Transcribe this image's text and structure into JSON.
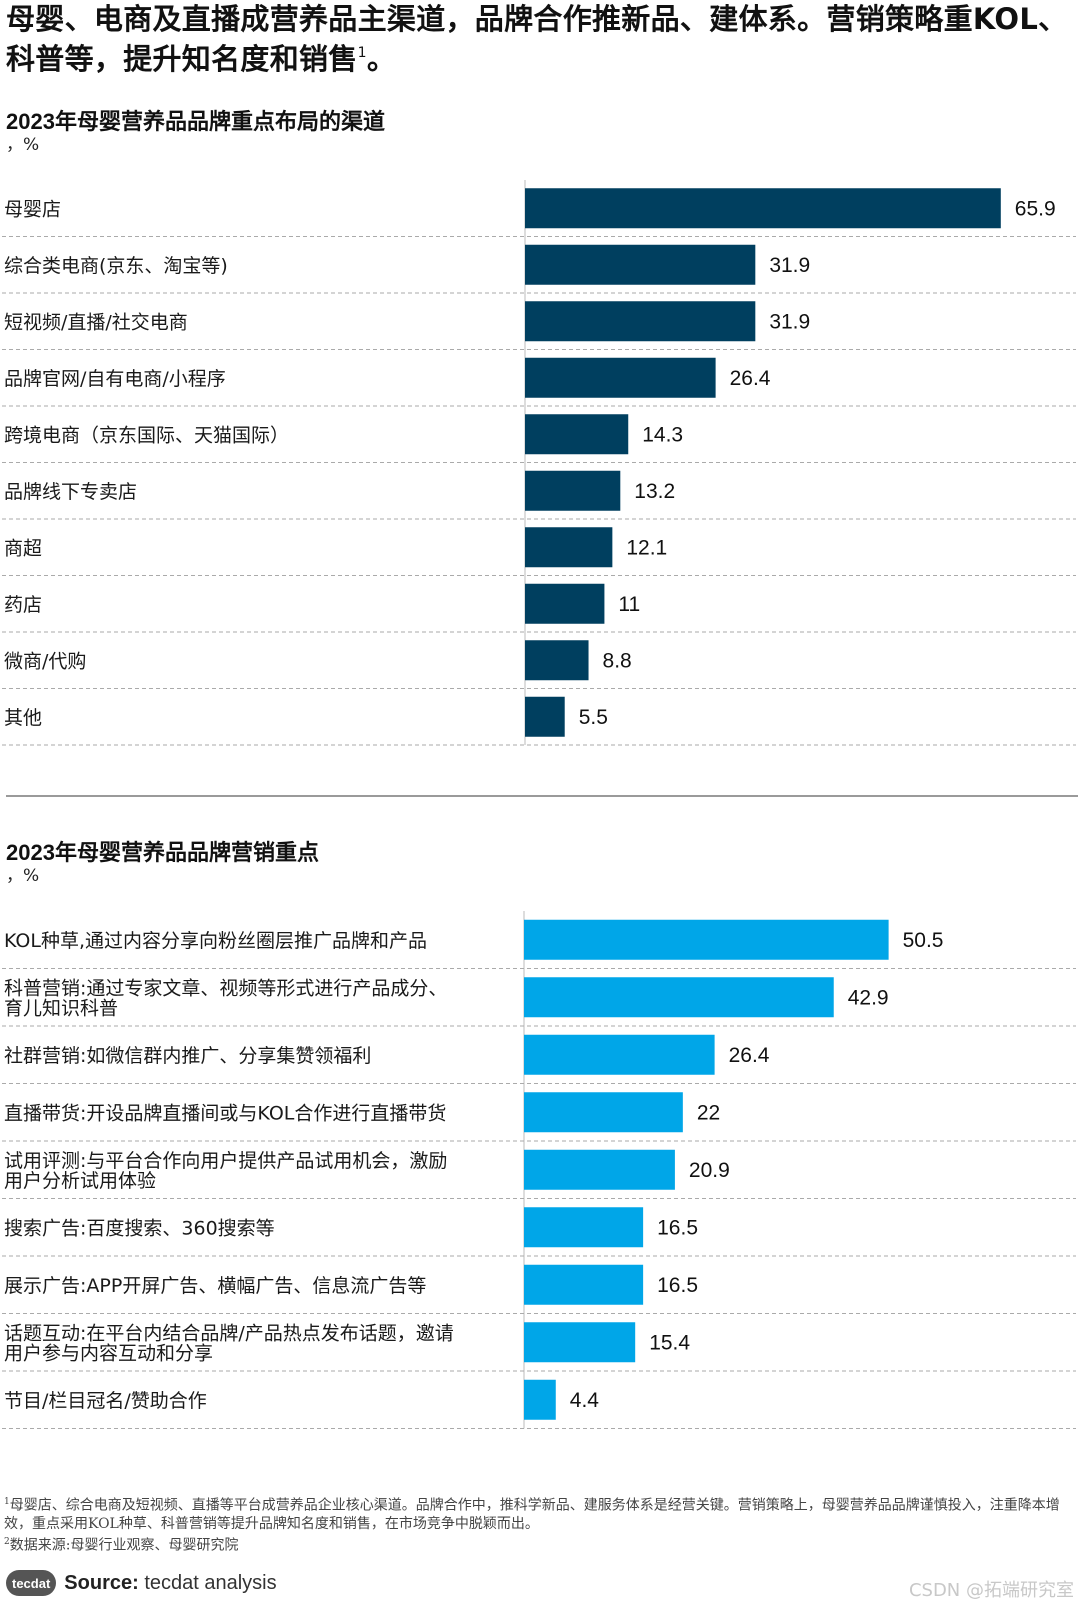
{
  "headline": {
    "text": "母婴、电商及直播成营养品主渠道，品牌合作推新品、建体系。营销策略重KOL、科普等，提升知名度和销售",
    "sup": "1",
    "end": "。"
  },
  "chart1": {
    "title": "2023年母婴营养品品牌重点布局的渠道",
    "unit": "，%"
  },
  "chart2": {
    "title": "2023年母婴营养品品牌营销重点",
    "unit": "，%"
  },
  "chart_data": [
    {
      "type": "bar",
      "orientation": "horizontal",
      "title": "2023年母婴营养品品牌重点布局的渠道",
      "ylabel": "%",
      "color": "#003f5f",
      "categories": [
        "母婴店",
        "综合类电商(京东、淘宝等)",
        "短视频/直播/社交电商",
        "品牌官网/自有电商/小程序",
        "跨境电商（京东国际、天猫国际）",
        "品牌线下专卖店",
        "商超",
        "药店",
        "微商/代购",
        "其他"
      ],
      "values": [
        65.9,
        31.9,
        31.9,
        26.4,
        14.3,
        13.2,
        12.1,
        11,
        8.8,
        5.5
      ],
      "value_labels": [
        "65.9",
        "31.9",
        "31.9",
        "26.4",
        "14.3",
        "13.2",
        "12.1",
        "11",
        "8.8",
        "5.5"
      ]
    },
    {
      "type": "bar",
      "orientation": "horizontal",
      "title": "2023年母婴营养品品牌营销重点",
      "ylabel": "%",
      "color": "#00a6e8",
      "categories": [
        [
          "KOL种草,通过内容分享向粉丝圈层推广品牌和产品"
        ],
        [
          "科普营销:通过专家文章、视频等形式进行产品成分、",
          "育儿知识科普"
        ],
        [
          "社群营销:如微信群内推广、分享集赞领福利"
        ],
        [
          "直播带货:开设品牌直播间或与KOL合作进行直播带货"
        ],
        [
          "试用评测:与平台合作向用户提供产品试用机会，激励",
          "用户分析试用体验"
        ],
        [
          "搜索广告:百度搜索、360搜索等"
        ],
        [
          "展示广告:APP开屏广告、横幅广告、信息流广告等"
        ],
        [
          "话题互动:在平台内结合品牌/产品热点发布话题，邀请",
          "用户参与内容互动和分享"
        ],
        [
          "节目/栏目冠名/赞助合作"
        ]
      ],
      "values": [
        50.5,
        42.9,
        26.4,
        22,
        20.9,
        16.5,
        16.5,
        15.4,
        4.4
      ],
      "value_labels": [
        "50.5",
        "42.9",
        "26.4",
        "22",
        "20.9",
        "16.5",
        "16.5",
        "15.4",
        "4.4"
      ]
    }
  ],
  "footnotes": {
    "note1_sup": "1",
    "note1": "母婴店、综合电商及短视频、直播等平台成营养品企业核心渠道。品牌合作中，推科学新品、建服务体系是经营关键。营销策略上，母婴营养品品牌谨慎投入，注重降本增效，重点采用KOL种草、科普营销等提升品牌知名度和销售，在市场竞争中脱颖而出。",
    "note2_sup": "2",
    "note2": "数据来源:母婴行业观察、母婴研究院"
  },
  "source": {
    "logo": "tecdat",
    "label": "Source:",
    "text": "tecdat analysis"
  },
  "watermark": "CSDN @拓端研究室"
}
